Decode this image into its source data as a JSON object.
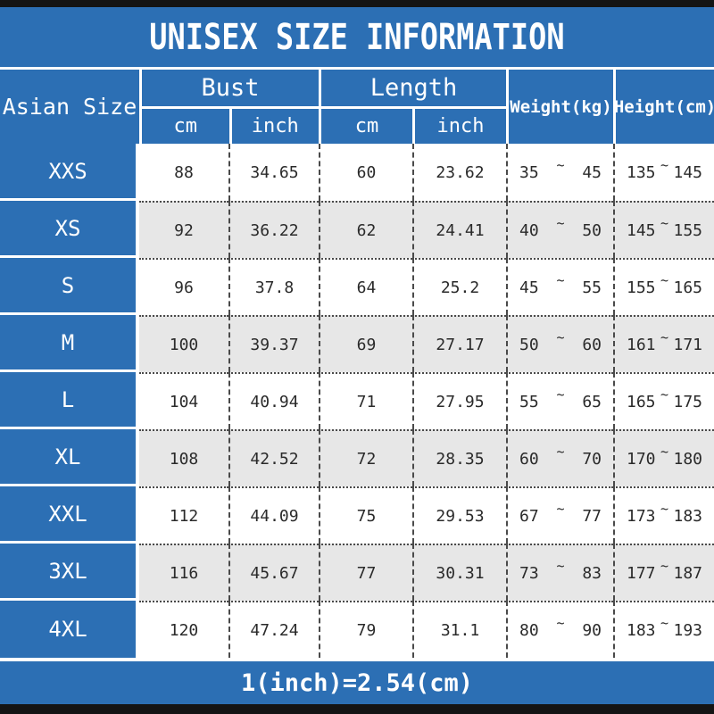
{
  "title": "UNISEX SIZE INFORMATION",
  "header": {
    "asian_size": "Asian Size",
    "bust": "Bust",
    "length": "Length",
    "bust_cm": "cm",
    "bust_inch": "inch",
    "length_cm": "cm",
    "length_inch": "inch",
    "weight": "Weight(kg)",
    "height": "Height(cm)",
    "tilde": "~"
  },
  "footer": {
    "note": "1(inch)=2.54(cm)"
  },
  "colors": {
    "blue": "#2c6fb4",
    "row_alt": "#e7e7e7",
    "bar_black": "#141414",
    "text_dark": "#2a2a2a",
    "text_white": "#ffffff"
  },
  "chart_data": {
    "type": "table",
    "title": "UNISEX SIZE INFORMATION",
    "columns": [
      "Asian Size",
      "Bust cm",
      "Bust inch",
      "Length cm",
      "Length inch",
      "Weight(kg) min",
      "Weight(kg) max",
      "Height(cm) min",
      "Height(cm) max"
    ],
    "rows": [
      [
        "XXS",
        "88",
        "34.65",
        "60",
        "23.62",
        "35",
        "45",
        "135",
        "145"
      ],
      [
        "XS",
        "92",
        "36.22",
        "62",
        "24.41",
        "40",
        "50",
        "145",
        "155"
      ],
      [
        "S",
        "96",
        "37.8",
        "64",
        "25.2",
        "45",
        "55",
        "155",
        "165"
      ],
      [
        "M",
        "100",
        "39.37",
        "69",
        "27.17",
        "50",
        "60",
        "161",
        "171"
      ],
      [
        "L",
        "104",
        "40.94",
        "71",
        "27.95",
        "55",
        "65",
        "165",
        "175"
      ],
      [
        "XL",
        "108",
        "42.52",
        "72",
        "28.35",
        "60",
        "70",
        "170",
        "180"
      ],
      [
        "XXL",
        "112",
        "44.09",
        "75",
        "29.53",
        "67",
        "77",
        "173",
        "183"
      ],
      [
        "3XL",
        "116",
        "45.67",
        "77",
        "30.31",
        "73",
        "83",
        "177",
        "187"
      ],
      [
        "4XL",
        "120",
        "47.24",
        "79",
        "31.1",
        "80",
        "90",
        "183",
        "193"
      ]
    ],
    "note": "1(inch)=2.54(cm)"
  }
}
